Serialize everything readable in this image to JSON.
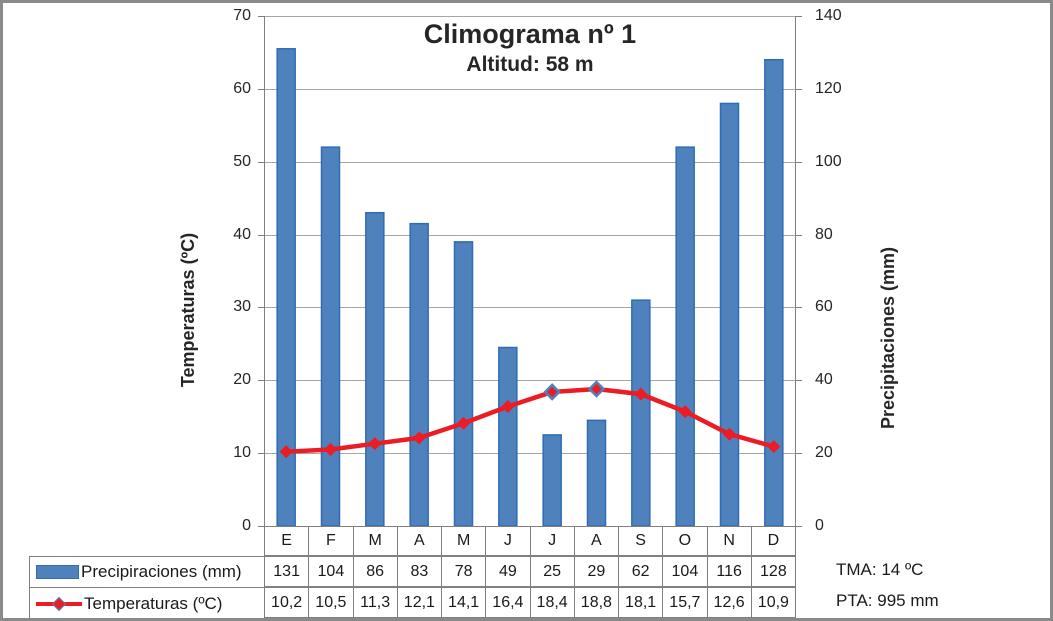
{
  "colors": {
    "bar_fill": "#4F81BD",
    "bar_border": "#2E6DB4",
    "line": "#EC1C24",
    "marker_highlight_border": "#4F81BD",
    "gridline": "#A6A6A6",
    "axis_line": "#808080",
    "table_border": "#808080",
    "frame_border": "#8A8A8A"
  },
  "chart_data": {
    "type": "combo-bar-line",
    "title": "Climograma nº 1",
    "subtitle": "Altitud: 58 m",
    "categories": [
      "E",
      "F",
      "M",
      "A",
      "M",
      "J",
      "J",
      "A",
      "S",
      "O",
      "N",
      "D"
    ],
    "series": [
      {
        "name": "Precipiraciones (mm)",
        "type": "bar",
        "axis": "right",
        "values": [
          131,
          104,
          86,
          83,
          78,
          49,
          25,
          29,
          62,
          104,
          116,
          128
        ],
        "display": [
          "131",
          "104",
          "86",
          "83",
          "78",
          "49",
          "25",
          "29",
          "62",
          "104",
          "116",
          "128"
        ]
      },
      {
        "name": "Temperaturas (ºC)",
        "type": "line",
        "axis": "left",
        "values": [
          10.2,
          10.5,
          11.3,
          12.1,
          14.1,
          16.4,
          18.4,
          18.8,
          18.1,
          15.7,
          12.6,
          10.9
        ],
        "display": [
          "10,2",
          "10,5",
          "11,3",
          "12,1",
          "14,1",
          "16,4",
          "18,4",
          "18,8",
          "18,1",
          "15,7",
          "12,6",
          "10,9"
        ]
      }
    ],
    "left_axis": {
      "title": "Temperaturas (ºC)",
      "min": 0,
      "max": 70,
      "step": 10,
      "tick_labels": [
        "70",
        "60",
        "50",
        "40",
        "30",
        "20",
        "10",
        "0"
      ]
    },
    "right_axis": {
      "title": "Precipitaciones (mm)",
      "min": 0,
      "max": 140,
      "step": 20,
      "tick_labels": [
        "140",
        "120",
        "100",
        "80",
        "60",
        "40",
        "20",
        "0"
      ]
    },
    "grid": true,
    "legend_position": "bottom-data-table",
    "highlight_marker_indices": [
      6,
      7
    ]
  },
  "annotations": {
    "tma": "TMA: 14 ºC",
    "pta": "PTA: 995 mm"
  }
}
